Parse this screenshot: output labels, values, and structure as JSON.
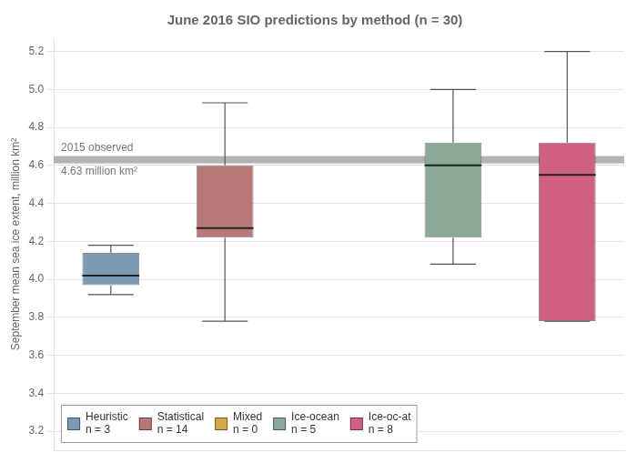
{
  "chart_data": {
    "type": "box",
    "title": "June 2016 SIO predictions by method (n = 30)",
    "ylabel": "September mean sea ice extent, million km²",
    "ylim": [
      3.1,
      5.27
    ],
    "yticks": [
      3.2,
      3.4,
      3.6,
      3.8,
      {
        "value": 4.0,
        "label": "4.0"
      },
      4.2,
      4.4,
      4.6,
      4.8,
      {
        "value": 5.0,
        "label": "5.0"
      },
      5.2
    ],
    "grid": true,
    "tick_labels": "y",
    "legend": "lower left",
    "reference_line": {
      "value": 4.63,
      "labels": [
        "2015 observed",
        "4.63 million km²"
      ]
    },
    "series": [
      {
        "name": "Heuristic\nn = 3",
        "color": "#7b9ab5",
        "whislo": 3.92,
        "q1": 3.97,
        "med": 4.02,
        "q3": 4.14,
        "whishi": 4.18
      },
      {
        "name": "Statistical\nn = 14",
        "color": "#b87878",
        "whislo": 3.78,
        "q1": 4.22,
        "med": 4.27,
        "q3": 4.6,
        "whishi": 4.93
      },
      {
        "name": "Mixed\nn = 0",
        "color": "#d4a847",
        "whislo": null,
        "q1": null,
        "med": null,
        "q3": null,
        "whishi": null
      },
      {
        "name": "Ice-ocean\nn = 5",
        "color": "#8aaa96",
        "whislo": 4.08,
        "q1": 4.22,
        "med": 4.6,
        "q3": 4.72,
        "whishi": 5.0
      },
      {
        "name": "Ice-oc-at\nn = 8",
        "color": "#d06080",
        "whislo": 3.78,
        "q1": 3.78,
        "med": 4.55,
        "q3": 4.72,
        "whishi": 5.2
      }
    ]
  }
}
